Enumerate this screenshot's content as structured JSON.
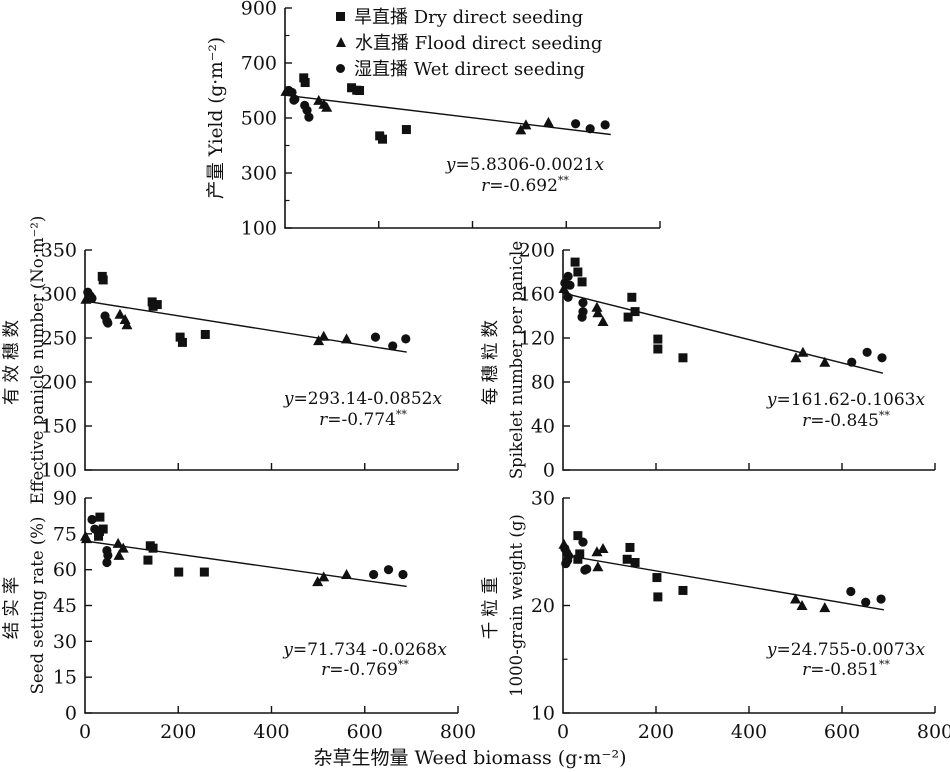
{
  "figure": {
    "x_axis_title": "杂草生物量 Weed biomass (g·m⁻²)",
    "legend": [
      {
        "marker": "square",
        "label": "旱直播 Dry direct seeding"
      },
      {
        "marker": "triangle",
        "label": "水直播 Flood direct seeding"
      },
      {
        "marker": "circle",
        "label": "湿直播 Wet direct seeding"
      }
    ],
    "marker_color": "#111111",
    "axis_color": "#111111"
  },
  "chart_data": [
    {
      "id": "yield",
      "type": "scatter",
      "ylabel_cn": "产量",
      "ylabel_en": "Yield (g·m⁻²)",
      "ylabel_mode": "single",
      "ylim": [
        100,
        900
      ],
      "yticks": [
        100,
        300,
        500,
        700,
        900
      ],
      "yminor": [
        200,
        400,
        600,
        800
      ],
      "xlim": [
        0,
        800
      ],
      "xticks": [
        0,
        200,
        400,
        600,
        800
      ],
      "xtick_labels_visible": false,
      "equation": "y=5.8306-0.0021x",
      "r_text": "r=-0.692",
      "r_sup": "**",
      "regression_line": {
        "x": [
          0,
          695
        ],
        "y": [
          583,
          440
        ]
      },
      "series": [
        {
          "name": "Dry direct seeding",
          "marker": "square",
          "points": [
            [
              40,
              646
            ],
            [
              43,
              629
            ],
            [
              142,
              610
            ],
            [
              153,
              601
            ],
            [
              159,
              600
            ],
            [
              202,
              435
            ],
            [
              208,
              423
            ],
            [
              259,
              458
            ]
          ]
        },
        {
          "name": "Flood direct seeding",
          "marker": "triangle",
          "points": [
            [
              2,
              597
            ],
            [
              72,
              564
            ],
            [
              83,
              550
            ],
            [
              89,
              539
            ],
            [
              503,
              457
            ],
            [
              514,
              475
            ],
            [
              562,
              484
            ]
          ]
        },
        {
          "name": "Wet direct seeding",
          "marker": "circle",
          "points": [
            [
              8,
              600
            ],
            [
              15,
              593
            ],
            [
              21,
              568
            ],
            [
              19,
              565
            ],
            [
              42,
              546
            ],
            [
              47,
              528
            ],
            [
              51,
              503
            ],
            [
              620,
              479
            ],
            [
              651,
              461
            ],
            [
              683,
              475
            ]
          ]
        }
      ]
    },
    {
      "id": "panicle",
      "type": "scatter",
      "ylabel_cn": "有效穗数",
      "ylabel_en": "Effective panicle number (No·m⁻²)",
      "ylabel_mode": "double",
      "ylim": [
        100,
        350
      ],
      "yticks": [
        100,
        150,
        200,
        250,
        300,
        350
      ],
      "yminor": [],
      "xlim": [
        0,
        800
      ],
      "xticks": [
        0,
        200,
        400,
        600,
        800
      ],
      "xtick_labels_visible": false,
      "equation": "y=293.14-0.0852x",
      "r_text": "r=-0.774",
      "r_sup": "**",
      "regression_line": {
        "x": [
          0,
          690
        ],
        "y": [
          292,
          234
        ]
      },
      "series": [
        {
          "name": "Dry direct seeding",
          "marker": "square",
          "points": [
            [
              37,
              320
            ],
            [
              39,
              316
            ],
            [
              144,
              291
            ],
            [
              155,
              288
            ],
            [
              146,
              286
            ],
            [
              204,
              251
            ],
            [
              209,
              245
            ],
            [
              258,
              254
            ]
          ]
        },
        {
          "name": "Flood direct seeding",
          "marker": "triangle",
          "points": [
            [
              2,
              294
            ],
            [
              75,
              277
            ],
            [
              86,
              271
            ],
            [
              90,
              265
            ],
            [
              501,
              247
            ],
            [
              512,
              252
            ],
            [
              561,
              249
            ]
          ]
        },
        {
          "name": "Wet direct seeding",
          "marker": "circle",
          "points": [
            [
              6,
              302
            ],
            [
              11,
              298
            ],
            [
              15,
              295
            ],
            [
              43,
              275
            ],
            [
              47,
              269
            ],
            [
              49,
              267
            ],
            [
              623,
              251
            ],
            [
              660,
              241
            ],
            [
              688,
              249
            ]
          ]
        }
      ]
    },
    {
      "id": "spikelet",
      "type": "scatter",
      "ylabel_cn": "每穗粒数",
      "ylabel_en": "Spikelet number per panicle",
      "ylabel_mode": "double",
      "ylim": [
        0,
        200
      ],
      "yticks": [
        0,
        40,
        80,
        120,
        160,
        200
      ],
      "yminor": [],
      "xlim": [
        0,
        800
      ],
      "xticks": [
        0,
        200,
        400,
        600,
        800
      ],
      "xtick_labels_visible": false,
      "equation": "y=161.62-0.1063x",
      "r_text": "r=-0.845",
      "r_sup": "**",
      "regression_line": {
        "x": [
          0,
          688
        ],
        "y": [
          161,
          88
        ]
      },
      "series": [
        {
          "name": "Dry direct seeding",
          "marker": "square",
          "points": [
            [
              26,
              189
            ],
            [
              32,
              180
            ],
            [
              41,
              171
            ],
            [
              148,
              157
            ],
            [
              155,
              144
            ],
            [
              140,
              139
            ],
            [
              204,
              119
            ],
            [
              204,
              110
            ],
            [
              258,
              102
            ]
          ]
        },
        {
          "name": "Flood direct seeding",
          "marker": "triangle",
          "points": [
            [
              2,
              165
            ],
            [
              73,
              148
            ],
            [
              75,
              143
            ],
            [
              86,
              135
            ],
            [
              501,
              102
            ],
            [
              516,
              107
            ],
            [
              563,
              98
            ]
          ]
        },
        {
          "name": "Wet direct seeding",
          "marker": "circle",
          "points": [
            [
              11,
              176
            ],
            [
              15,
              168
            ],
            [
              4,
              170
            ],
            [
              11,
              157
            ],
            [
              43,
              152
            ],
            [
              43,
              144
            ],
            [
              41,
              139
            ],
            [
              621,
              98
            ],
            [
              654,
              107
            ],
            [
              686,
              102
            ]
          ]
        }
      ]
    },
    {
      "id": "seedset",
      "type": "scatter",
      "ylabel_cn": "结实率",
      "ylabel_en": "Seed setting rate (%)",
      "ylabel_mode": "double",
      "ylim": [
        0,
        90
      ],
      "yticks": [
        0,
        15,
        30,
        45,
        60,
        75,
        90
      ],
      "yminor": [],
      "xlim": [
        0,
        800
      ],
      "xticks": [
        0,
        200,
        400,
        600,
        800
      ],
      "xtick_labels_visible": true,
      "equation": "y=71.734 -0.0268x",
      "r_text": "r=-0.769",
      "r_sup": "**",
      "regression_line": {
        "x": [
          0,
          690
        ],
        "y": [
          72,
          53
        ]
      },
      "series": [
        {
          "name": "Dry direct seeding",
          "marker": "square",
          "points": [
            [
              32,
              82
            ],
            [
              39,
              77
            ],
            [
              31,
              76
            ],
            [
              29,
              74
            ],
            [
              140,
              70
            ],
            [
              146,
              69
            ],
            [
              135,
              64
            ],
            [
              201,
              59
            ],
            [
              256,
              59
            ]
          ]
        },
        {
          "name": "Flood direct seeding",
          "marker": "triangle",
          "points": [
            [
              1,
              74
            ],
            [
              3,
              73
            ],
            [
              71,
              71
            ],
            [
              82,
              69
            ],
            [
              73,
              66
            ],
            [
              499,
              55
            ],
            [
              512,
              57
            ],
            [
              561,
              58
            ]
          ]
        },
        {
          "name": "Wet direct seeding",
          "marker": "circle",
          "points": [
            [
              15,
              81
            ],
            [
              21,
              77
            ],
            [
              47,
              68
            ],
            [
              49,
              66
            ],
            [
              47,
              63
            ],
            [
              619,
              58
            ],
            [
              651,
              60
            ],
            [
              682,
              58
            ]
          ]
        }
      ]
    },
    {
      "id": "grain",
      "type": "scatter",
      "ylabel_cn": "千粒重",
      "ylabel_en": "1000-grain weight (g)",
      "ylabel_mode": "double",
      "ylim": [
        10,
        30
      ],
      "yticks": [
        10,
        20,
        30
      ],
      "yminor": [
        15,
        25
      ],
      "xlim": [
        0,
        800
      ],
      "xticks": [
        0,
        200,
        400,
        600,
        800
      ],
      "xtick_labels_visible": true,
      "equation": "y=24.755-0.0073x",
      "r_text": "r=-0.851",
      "r_sup": "**",
      "regression_line": {
        "x": [
          0,
          690
        ],
        "y": [
          24.7,
          19.6
        ]
      },
      "series": [
        {
          "name": "Dry direct seeding",
          "marker": "square",
          "points": [
            [
              32,
              26.5
            ],
            [
              36,
              24.8
            ],
            [
              32,
              24.3
            ],
            [
              144,
              25.4
            ],
            [
              138,
              24.3
            ],
            [
              155,
              24.0
            ],
            [
              202,
              22.6
            ],
            [
              204,
              20.8
            ],
            [
              258,
              21.4
            ]
          ]
        },
        {
          "name": "Flood direct seeding",
          "marker": "triangle",
          "points": [
            [
              2,
              25.7
            ],
            [
              73,
              25.0
            ],
            [
              86,
              25.3
            ],
            [
              75,
              23.6
            ],
            [
              500,
              20.6
            ],
            [
              514,
              20.0
            ],
            [
              563,
              19.8
            ]
          ]
        },
        {
          "name": "Wet direct seeding",
          "marker": "circle",
          "points": [
            [
              4,
              25.3
            ],
            [
              8,
              24.9
            ],
            [
              12,
              24.6
            ],
            [
              10,
              24.2
            ],
            [
              6,
              23.9
            ],
            [
              43,
              25.9
            ],
            [
              47,
              23.3
            ],
            [
              51,
              23.4
            ],
            [
              619,
              21.3
            ],
            [
              651,
              20.3
            ],
            [
              684,
              20.6
            ]
          ]
        }
      ]
    }
  ]
}
